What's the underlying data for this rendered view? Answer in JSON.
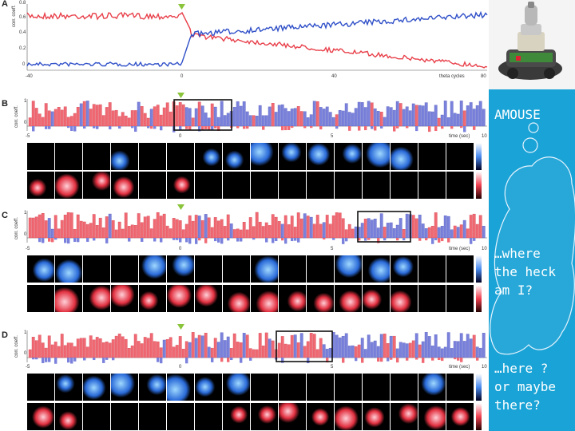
{
  "panels": {
    "A": {
      "letter": "A",
      "ylabel": "corr. coeff.",
      "yticks": [
        "0.8",
        "0.6",
        "0.4",
        "0.2",
        "0"
      ],
      "xticks": [
        "-40",
        "0",
        "40"
      ],
      "xlabel": "theta cycles",
      "xlast": "80"
    },
    "B": {
      "letter": "B",
      "ylabel": "corr. coeff.",
      "yticks": [
        "1",
        "0"
      ],
      "xticks": [
        "-5",
        "0",
        "5"
      ],
      "xlabel": "time (sec)",
      "xlast": "10"
    },
    "C": {
      "letter": "C",
      "ylabel": "corr. coeff.",
      "yticks": [
        "1",
        "0"
      ],
      "xticks": [
        "-5",
        "0",
        "5"
      ],
      "xlabel": "time (sec)",
      "xlast": "10"
    },
    "D": {
      "letter": "D",
      "ylabel": "corr. coeff.",
      "yticks": [
        "1",
        "0"
      ],
      "xticks": [
        "-5",
        "0",
        "5"
      ],
      "xlabel": "time (sec)",
      "xlast": "10"
    }
  },
  "sidebar": {
    "title": "AMOUSE",
    "thought1": "…where\nthe heck\nam I?",
    "thought2": "…here ?\nor maybe\nthere?"
  },
  "colors": {
    "red": "#e8404a",
    "blue": "#3050c8",
    "bar_red": "#f06a74",
    "bar_blue": "#7a82dc",
    "marker": "#8ac43a",
    "sidebar": "#1aa3d6"
  }
}
